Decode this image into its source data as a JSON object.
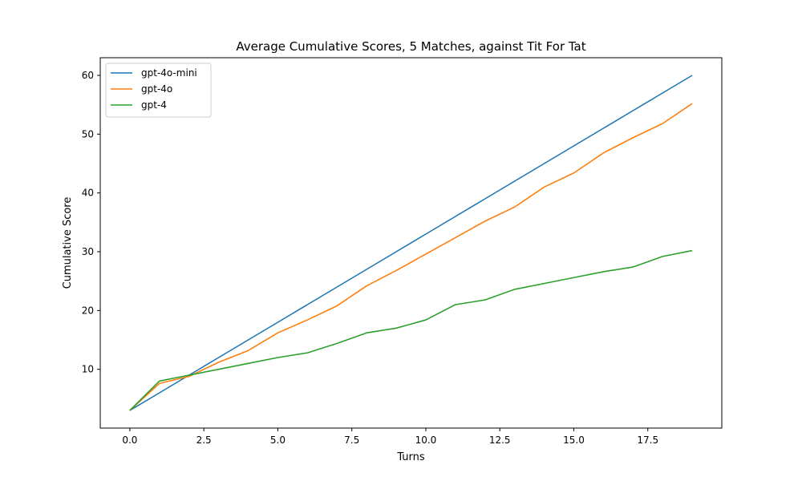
{
  "chart_data": {
    "type": "line",
    "title": "Average Cumulative Scores, 5 Matches, against Tit For Tat",
    "xlabel": "Turns",
    "ylabel": "Cumulative Score",
    "xlim": [
      -1,
      20
    ],
    "ylim": [
      0,
      63
    ],
    "xticks": [
      0.0,
      2.5,
      5.0,
      7.5,
      10.0,
      12.5,
      15.0,
      17.5
    ],
    "xtick_labels": [
      "0.0",
      "2.5",
      "5.0",
      "7.5",
      "10.0",
      "12.5",
      "15.0",
      "17.5"
    ],
    "yticks": [
      10,
      20,
      30,
      40,
      50,
      60
    ],
    "ytick_labels": [
      "10",
      "20",
      "30",
      "40",
      "50",
      "60"
    ],
    "grid": false,
    "legend_position": "top-left",
    "x": [
      0,
      1,
      2,
      3,
      4,
      5,
      6,
      7,
      8,
      9,
      10,
      11,
      12,
      13,
      14,
      15,
      16,
      17,
      18,
      19
    ],
    "series": [
      {
        "name": "gpt-4o-mini",
        "color": "#1f77b4",
        "values": [
          3,
          6,
          9,
          12,
          15,
          18,
          21,
          24,
          27,
          30,
          33,
          36,
          39,
          42,
          45,
          48,
          51,
          54,
          57,
          60
        ]
      },
      {
        "name": "gpt-4o",
        "color": "#ff7f0e",
        "values": [
          3,
          7.6,
          8.8,
          11.2,
          13.2,
          16.2,
          18.4,
          20.8,
          24.2,
          26.8,
          29.6,
          32.4,
          35.2,
          37.6,
          41.0,
          43.4,
          46.8,
          49.4,
          51.8,
          55.2
        ]
      },
      {
        "name": "gpt-4",
        "color": "#2ca02c",
        "values": [
          3,
          8.0,
          9.0,
          10.0,
          11.0,
          12.0,
          12.8,
          14.4,
          16.2,
          17.0,
          18.4,
          21.0,
          21.8,
          23.6,
          24.6,
          25.6,
          26.6,
          27.4,
          29.2,
          30.2
        ]
      }
    ]
  }
}
